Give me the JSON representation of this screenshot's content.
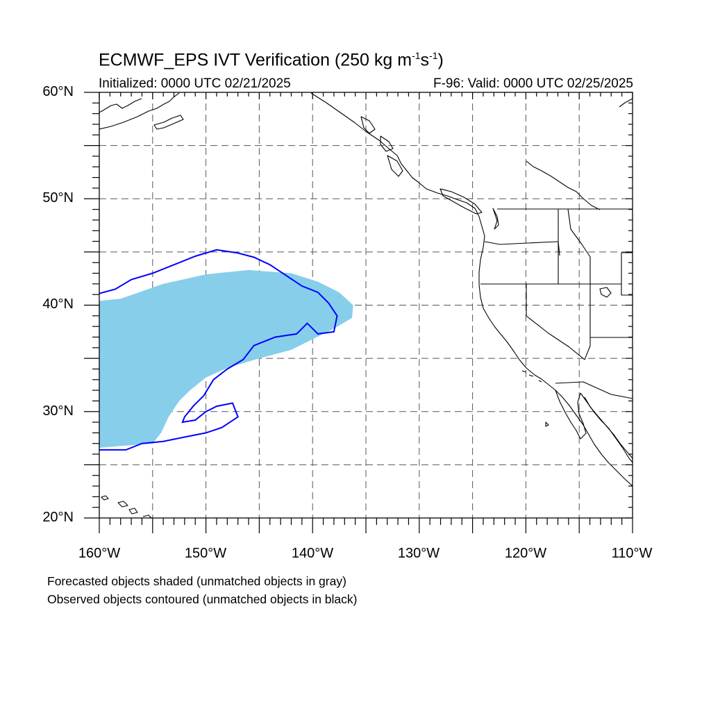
{
  "title": {
    "main": "ECMWF_EPS IVT Verification (250 kg m",
    "exp1": "-1",
    "mid": "s",
    "exp2": "-1",
    "end": ")"
  },
  "subtitle": {
    "initialized": "Initialized: 0000 UTC 02/21/2025",
    "valid": "F-96: Valid: 0000 UTC 02/25/2025"
  },
  "axes": {
    "lat_labels": [
      "60°N",
      "50°N",
      "40°N",
      "30°N",
      "20°N"
    ],
    "lon_labels": [
      "160°W",
      "150°W",
      "140°W",
      "130°W",
      "120°W",
      "110°W"
    ],
    "lat_range": [
      20,
      60
    ],
    "lon_range": [
      -160,
      -110
    ],
    "grid": "dashed every 5 degrees"
  },
  "legend": {
    "line1": "Forecasted objects shaded (unmatched objects in gray)",
    "line2": "Observed objects contoured (unmatched objects in black)"
  },
  "colors": {
    "forecast_fill": "#87ceeb",
    "observed_contour": "#0000ff",
    "coastline": "#000000",
    "grid": "#555555"
  },
  "objects": {
    "forecast_shaded": {
      "type": "matched forecast object",
      "polygon_lonlat": [
        [
          -160,
          40.4
        ],
        [
          -158,
          40.6
        ],
        [
          -156,
          41.3
        ],
        [
          -154,
          42.0
        ],
        [
          -150,
          42.9
        ],
        [
          -146,
          43.3
        ],
        [
          -142,
          43.0
        ],
        [
          -139.5,
          42.2
        ],
        [
          -137.5,
          41.2
        ],
        [
          -136.2,
          40.0
        ],
        [
          -136.3,
          38.8
        ],
        [
          -138,
          37.8
        ],
        [
          -140,
          36.8
        ],
        [
          -142,
          35.8
        ],
        [
          -145,
          35.0
        ],
        [
          -148,
          34.1
        ],
        [
          -150,
          33.2
        ],
        [
          -151.5,
          32.0
        ],
        [
          -152.5,
          31.0
        ],
        [
          -153.5,
          29.5
        ],
        [
          -154.2,
          28.0
        ],
        [
          -155,
          27.0
        ],
        [
          -157.5,
          26.8
        ],
        [
          -160,
          26.6
        ]
      ]
    },
    "observed_contour": {
      "type": "matched observed object",
      "outer_lonlat": [
        [
          -160,
          41.1
        ],
        [
          -158.5,
          41.5
        ],
        [
          -157,
          42.4
        ],
        [
          -155,
          43.0
        ],
        [
          -153,
          43.8
        ],
        [
          -151,
          44.6
        ],
        [
          -149,
          45.2
        ],
        [
          -147,
          44.9
        ],
        [
          -145.5,
          44.5
        ],
        [
          -144,
          43.8
        ],
        [
          -142.5,
          42.8
        ],
        [
          -141,
          41.8
        ],
        [
          -139.5,
          41.2
        ],
        [
          -138.5,
          40.2
        ],
        [
          -137.7,
          39.0
        ],
        [
          -138,
          37.5
        ],
        [
          -139.5,
          37.3
        ],
        [
          -140.5,
          38.3
        ],
        [
          -141.5,
          37.3
        ],
        [
          -143.5,
          37.0
        ],
        [
          -145.5,
          36.2
        ],
        [
          -146.5,
          34.9
        ],
        [
          -148,
          34.0
        ],
        [
          -149.3,
          33.0
        ],
        [
          -150.2,
          31.5
        ],
        [
          -151.2,
          30.5
        ],
        [
          -152,
          29.5
        ],
        [
          -152.2,
          29.0
        ],
        [
          -151,
          29.2
        ],
        [
          -150,
          30.0
        ],
        [
          -149,
          30.5
        ],
        [
          -147.5,
          30.8
        ],
        [
          -147,
          29.5
        ],
        [
          -148.5,
          28.5
        ],
        [
          -150,
          28.0
        ],
        [
          -152,
          27.6
        ],
        [
          -154,
          27.2
        ],
        [
          -156,
          27.0
        ],
        [
          -157.5,
          26.4
        ],
        [
          -160,
          26.4
        ]
      ]
    }
  }
}
